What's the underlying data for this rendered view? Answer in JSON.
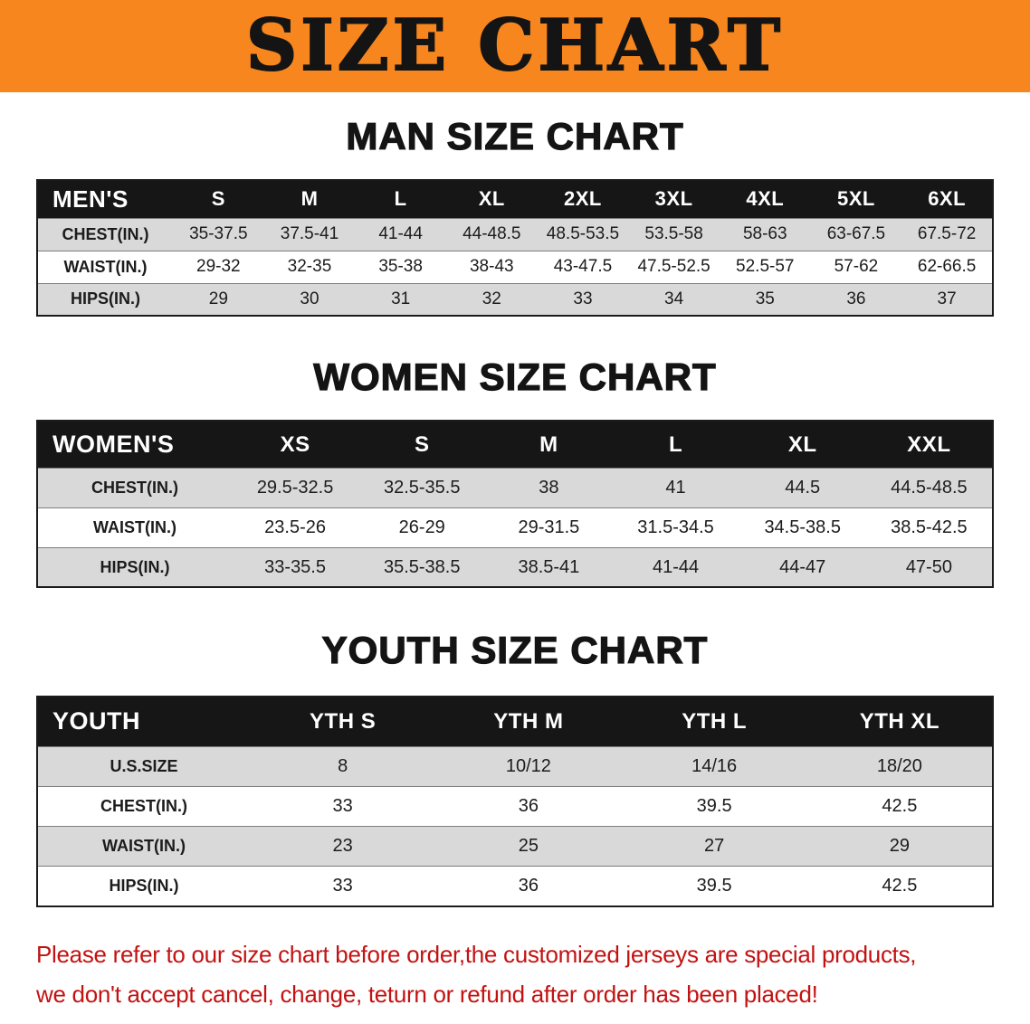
{
  "banner": {
    "title": "SIZE CHART",
    "bg_color": "#f6861d"
  },
  "sections": [
    {
      "heading": "MAN SIZE CHART",
      "table": {
        "header": [
          "MEN'S",
          "S",
          "M",
          "L",
          "XL",
          "2XL",
          "3XL",
          "4XL",
          "5XL",
          "6XL"
        ],
        "rows": [
          [
            "CHEST(IN.)",
            "35-37.5",
            "37.5-41",
            "41-44",
            "44-48.5",
            "48.5-53.5",
            "53.5-58",
            "58-63",
            "63-67.5",
            "67.5-72"
          ],
          [
            "WAIST(IN.)",
            "29-32",
            "32-35",
            "35-38",
            "38-43",
            "43-47.5",
            "47.5-52.5",
            "52.5-57",
            "57-62",
            "62-66.5"
          ],
          [
            "HIPS(IN.)",
            "29",
            "30",
            "31",
            "32",
            "33",
            "34",
            "35",
            "36",
            "37"
          ]
        ]
      }
    },
    {
      "heading": "WOMEN SIZE CHART",
      "table": {
        "header": [
          "WOMEN'S",
          "XS",
          "S",
          "M",
          "L",
          "XL",
          "XXL"
        ],
        "rows": [
          [
            "CHEST(IN.)",
            "29.5-32.5",
            "32.5-35.5",
            "38",
            "41",
            "44.5",
            "44.5-48.5"
          ],
          [
            "WAIST(IN.)",
            "23.5-26",
            "26-29",
            "29-31.5",
            "31.5-34.5",
            "34.5-38.5",
            "38.5-42.5"
          ],
          [
            "HIPS(IN.)",
            "33-35.5",
            "35.5-38.5",
            "38.5-41",
            "41-44",
            "44-47",
            "47-50"
          ]
        ]
      }
    },
    {
      "heading": "YOUTH SIZE CHART",
      "table": {
        "header": [
          "YOUTH",
          "YTH S",
          "YTH M",
          "YTH L",
          "YTH XL"
        ],
        "rows": [
          [
            "U.S.SIZE",
            "8",
            "10/12",
            "14/16",
            "18/20"
          ],
          [
            "CHEST(IN.)",
            "33",
            "36",
            "39.5",
            "42.5"
          ],
          [
            "WAIST(IN.)",
            "23",
            "25",
            "27",
            "29"
          ],
          [
            "HIPS(IN.)",
            "33",
            "36",
            "39.5",
            "42.5"
          ]
        ]
      }
    }
  ],
  "footer": {
    "lines": [
      "Please refer to our size chart before order,the customized jerseys are special products,",
      "we don't accept cancel, change, teturn or refund after order has been placed!"
    ],
    "text_color": "#c31212"
  }
}
